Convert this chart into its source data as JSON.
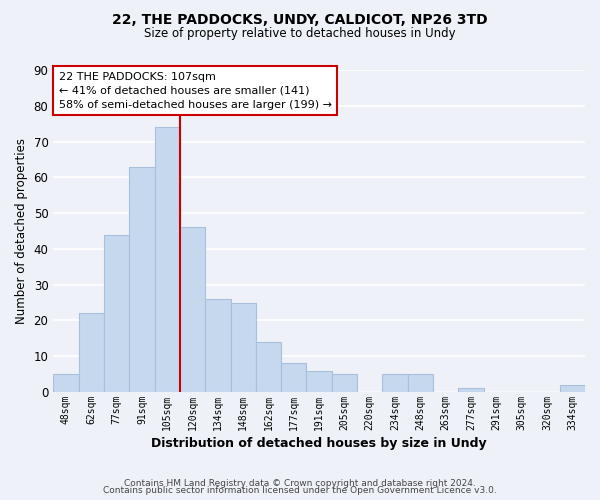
{
  "title": "22, THE PADDOCKS, UNDY, CALDICOT, NP26 3TD",
  "subtitle": "Size of property relative to detached houses in Undy",
  "xlabel": "Distribution of detached houses by size in Undy",
  "ylabel": "Number of detached properties",
  "bar_color": "#c6d8ee",
  "bar_edge_color": "#a8c0dc",
  "background_color": "#eef2f8",
  "grid_color": "white",
  "categories": [
    "48sqm",
    "62sqm",
    "77sqm",
    "91sqm",
    "105sqm",
    "120sqm",
    "134sqm",
    "148sqm",
    "162sqm",
    "177sqm",
    "191sqm",
    "205sqm",
    "220sqm",
    "234sqm",
    "248sqm",
    "263sqm",
    "277sqm",
    "291sqm",
    "305sqm",
    "320sqm",
    "334sqm"
  ],
  "values": [
    5,
    22,
    44,
    63,
    74,
    46,
    26,
    25,
    14,
    8,
    6,
    5,
    0,
    5,
    5,
    0,
    1,
    0,
    0,
    0,
    2
  ],
  "ylim": [
    0,
    90
  ],
  "yticks": [
    0,
    10,
    20,
    30,
    40,
    50,
    60,
    70,
    80,
    90
  ],
  "marker_idx": 4,
  "marker_color": "#cc0000",
  "annotation_title": "22 THE PADDOCKS: 107sqm",
  "annotation_line1": "← 41% of detached houses are smaller (141)",
  "annotation_line2": "58% of semi-detached houses are larger (199) →",
  "annotation_box_color": "white",
  "annotation_box_edge": "#cc0000",
  "footer1": "Contains HM Land Registry data © Crown copyright and database right 2024.",
  "footer2": "Contains public sector information licensed under the Open Government Licence v3.0."
}
